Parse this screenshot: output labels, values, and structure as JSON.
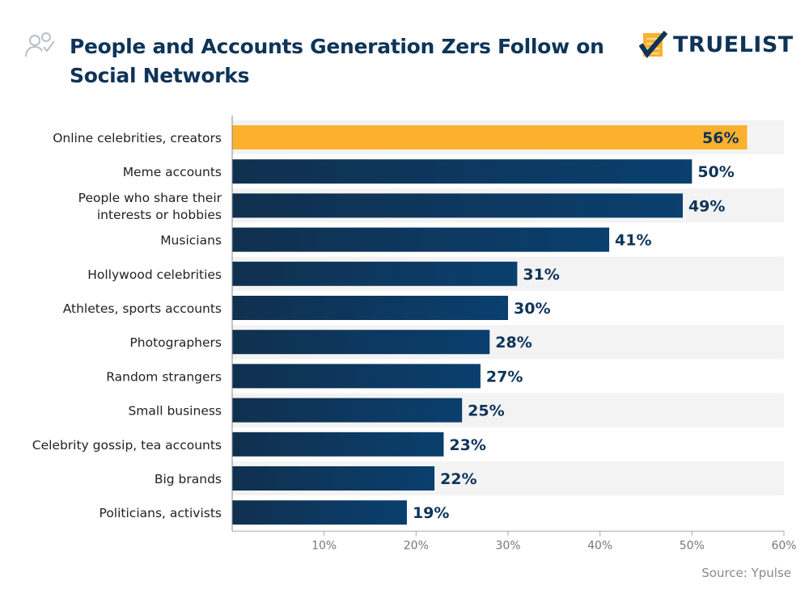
{
  "header": {
    "title": "People and Accounts Generation Zers Follow on Social Networks",
    "logo_text": "TRUELIST",
    "icon": "people-check-icon"
  },
  "footer": {
    "source": "Source: Ypulse"
  },
  "colors": {
    "highlight": "#fbb12e",
    "bar": "#0f3a64",
    "band": "#f3f3f3",
    "text": "#0e3458"
  },
  "chart_data": {
    "type": "bar",
    "orientation": "horizontal",
    "title": "People and Accounts Generation Zers Follow on Social Networks",
    "categories": [
      [
        "Online celebrities, creators"
      ],
      [
        "Meme accounts"
      ],
      [
        "People who share their",
        "interests or hobbies"
      ],
      [
        "Musicians"
      ],
      [
        "Hollywood celebrities"
      ],
      [
        "Athletes, sports accounts"
      ],
      [
        "Photographers"
      ],
      [
        "Random strangers"
      ],
      [
        "Small business"
      ],
      [
        "Celebrity gossip, tea accounts"
      ],
      [
        "Big brands"
      ],
      [
        "Politicians, activists"
      ]
    ],
    "values": [
      56,
      50,
      49,
      41,
      31,
      30,
      28,
      27,
      25,
      23,
      22,
      19
    ],
    "data_labels": [
      "56%",
      "50%",
      "49%",
      "41%",
      "31%",
      "30%",
      "28%",
      "27%",
      "25%",
      "23%",
      "22%",
      "19%"
    ],
    "highlight_index": 0,
    "xlim": [
      0,
      60
    ],
    "xticks": [
      10,
      20,
      30,
      40,
      50,
      60
    ],
    "xtick_labels": [
      "10%",
      "20%",
      "30%",
      "40%",
      "50%",
      "60%"
    ],
    "grid": false,
    "legend": "none"
  }
}
